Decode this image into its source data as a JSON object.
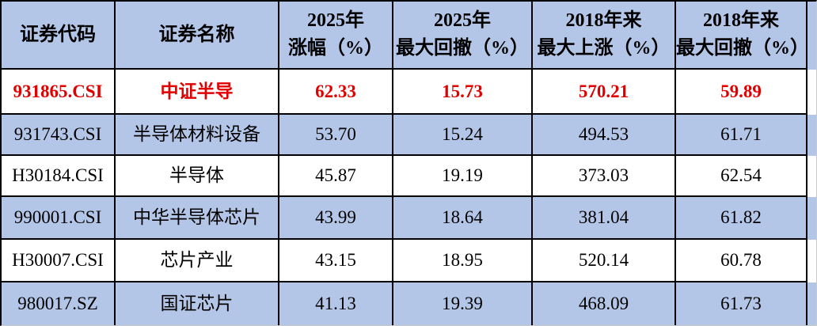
{
  "chart_data": {
    "type": "table",
    "columns": [
      "证券代码",
      "证券名称",
      "2025年\n涨幅（%）",
      "2025年\n最大回撤（%）",
      "2018年来\n最大上涨（%）",
      "2018年来\n最大回撤（%）"
    ],
    "rows": [
      [
        "931865.CSI",
        "中证半导",
        "62.33",
        "15.73",
        "570.21",
        "59.89"
      ],
      [
        "931743.CSI",
        "半导体材料设备",
        "53.70",
        "15.24",
        "494.53",
        "61.71"
      ],
      [
        "H30184.CSI",
        "半导体",
        "45.87",
        "19.19",
        "373.03",
        "62.54"
      ],
      [
        "990001.CSI",
        "中华半导体芯片",
        "43.99",
        "18.64",
        "381.04",
        "61.82"
      ],
      [
        "H30007.CSI",
        "芯片产业",
        "43.15",
        "18.95",
        "520.14",
        "60.78"
      ],
      [
        "980017.SZ",
        "国证芯片",
        "41.13",
        "19.39",
        "468.09",
        "61.73"
      ]
    ],
    "highlighted_row_index": 0,
    "layout": {
      "banding": "header blue; data rows alternate white/blue starting white",
      "highlight_style": "row 0 rendered bold red"
    }
  },
  "colors": {
    "header_bg": "#b4c6e7",
    "band_bg": "#b4c6e7",
    "white_bg": "#ffffff",
    "highlight_text": "#e00000",
    "grid_border": "#000000",
    "edge_gridline": "#c9c9c9"
  }
}
